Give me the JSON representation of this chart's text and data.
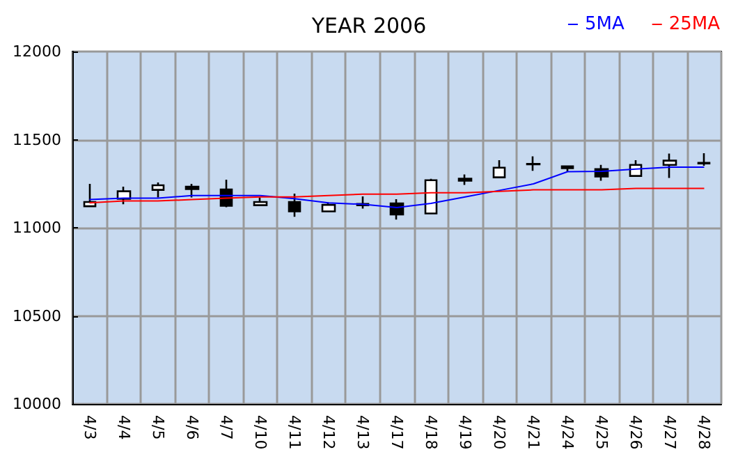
{
  "chart_data": {
    "type": "candlestick",
    "title": "YEAR 2006",
    "categories": [
      "4/3",
      "4/4",
      "4/5",
      "4/6",
      "4/7",
      "4/10",
      "4/11",
      "4/12",
      "4/13",
      "4/17",
      "4/18",
      "4/19",
      "4/20",
      "4/21",
      "4/24",
      "4/25",
      "4/26",
      "4/27",
      "4/28"
    ],
    "ohlc": [
      [
        11122,
        11249,
        11122,
        11146
      ],
      [
        11164,
        11233,
        11133,
        11207
      ],
      [
        11215,
        11257,
        11172,
        11241
      ],
      [
        11233,
        11249,
        11172,
        11220
      ],
      [
        11217,
        11273,
        11117,
        11125
      ],
      [
        11128,
        11172,
        11128,
        11146
      ],
      [
        11146,
        11194,
        11062,
        11093
      ],
      [
        11093,
        11144,
        11093,
        11130
      ],
      [
        11135,
        11178,
        11109,
        11128
      ],
      [
        11138,
        11162,
        11046,
        11075
      ],
      [
        11081,
        11278,
        11081,
        11270
      ],
      [
        11278,
        11302,
        11243,
        11267
      ],
      [
        11286,
        11383,
        11286,
        11341
      ],
      [
        11360,
        11405,
        11323,
        11362
      ],
      [
        11349,
        11354,
        11318,
        11338
      ],
      [
        11333,
        11357,
        11267,
        11291
      ],
      [
        11294,
        11383,
        11294,
        11357
      ],
      [
        11357,
        11421,
        11283,
        11381
      ],
      [
        11365,
        11423,
        11352,
        11368
      ]
    ],
    "series": [
      {
        "name": "5MA",
        "type": "line",
        "color": "#0000ff",
        "values": [
          11160,
          11168,
          11168,
          11183,
          11183,
          11183,
          11165,
          11141,
          11133,
          11115,
          11138,
          11175,
          11212,
          11249,
          11318,
          11320,
          11333,
          11344,
          11344
        ]
      },
      {
        "name": "25MA",
        "type": "line",
        "color": "#ff0000",
        "values": [
          11141,
          11152,
          11152,
          11160,
          11168,
          11175,
          11175,
          11183,
          11191,
          11191,
          11199,
          11199,
          11207,
          11215,
          11215,
          11215,
          11223,
          11223,
          11223
        ]
      }
    ],
    "ylim": [
      10000,
      12000
    ],
    "yticks": [
      10000,
      10500,
      11000,
      11500,
      12000
    ],
    "grid": true,
    "legend": "top right",
    "marker": "none"
  }
}
